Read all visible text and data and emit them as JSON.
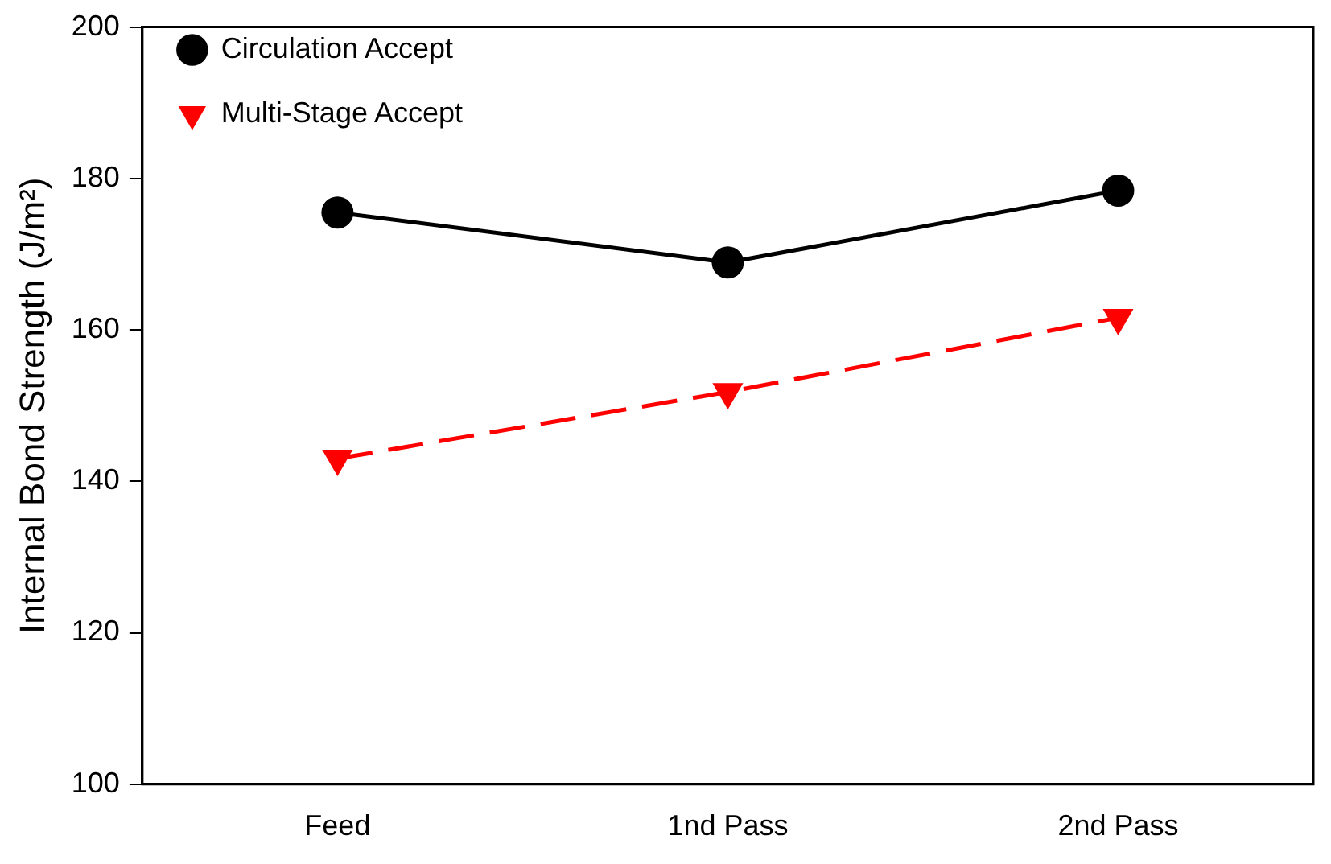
{
  "chart_data": {
    "type": "line",
    "ylabel": "Internal Bond Strength (J/m²)",
    "categories": [
      "Feed",
      "1nd Pass",
      "2nd Pass"
    ],
    "series": [
      {
        "name": "Circulation Accept",
        "color": "#000000",
        "values": [
          175.5,
          168.9,
          178.4
        ],
        "marker": "circle",
        "line_style": "solid"
      },
      {
        "name": "Multi-Stage Accept",
        "color": "#ff0000",
        "values": [
          143,
          151.8,
          161.6
        ],
        "marker": "triangle",
        "line_style": "dashed"
      }
    ],
    "ylim": [
      100,
      200
    ],
    "yticks": [
      100,
      120,
      140,
      160,
      180,
      200
    ],
    "grid": false,
    "legend": "top left"
  }
}
